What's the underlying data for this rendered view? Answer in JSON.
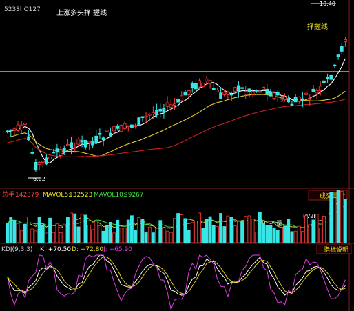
{
  "header": {
    "code": "523ShO127",
    "title": "上涨多头择 握线",
    "high_price": "10.40",
    "annotation_right": "择握线"
  },
  "price_panel": {
    "low_price_label": "6.02"
  },
  "volume_panel": {
    "title_prefix": "总手",
    "total_value": "142379",
    "mavol5_label": "MAVOL5:",
    "mavol5_value": "132523",
    "mavol10_label": "MAVOL10:",
    "mavol10_value": "99267",
    "button_label": "成交量",
    "annotation_left": "凹口凹量",
    "annotation_right": "PV2D"
  },
  "kdj_panel": {
    "title": "KDJ(9,3,3)",
    "k_text": "K: +70.50",
    "d_text": "D: +72.80",
    "j_text": "J: +65.90",
    "button_label": "指标说明"
  },
  "colors": {
    "background": "#000000",
    "up_candle": "#ff3b3b",
    "down_candle": "#38e6e6",
    "ma_short": "#ffffff",
    "ma_mid": "#e0d020",
    "ma_long": "#d02020",
    "text_yellow": "#e8e020",
    "text_red": "#ff4040",
    "text_green": "#40e040",
    "kdj_k": "#ffffff",
    "kdj_d": "#e0d020",
    "kdj_j": "#e040e0"
  }
}
